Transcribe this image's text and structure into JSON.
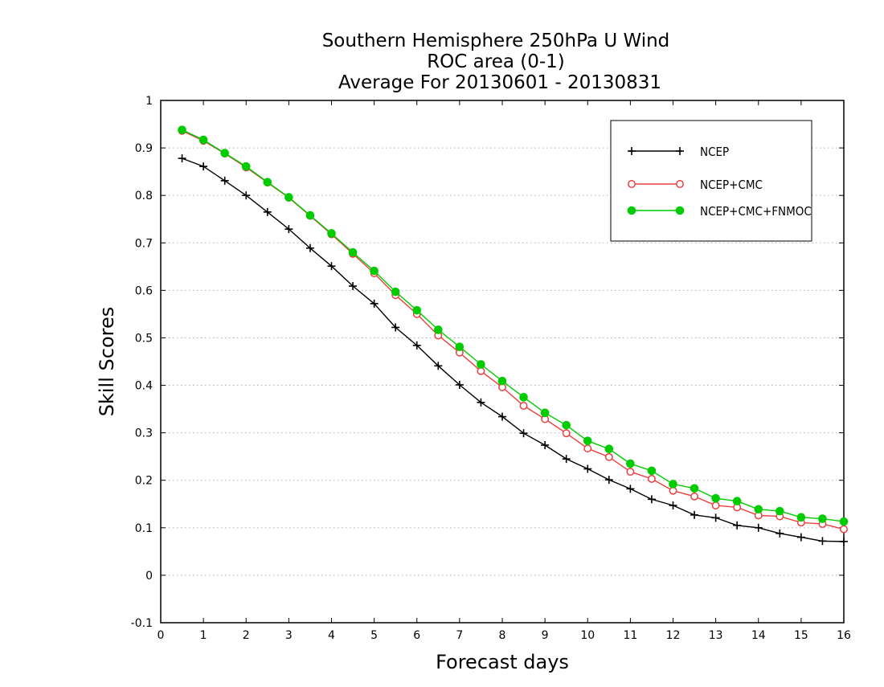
{
  "chart_data": {
    "type": "line",
    "title": [
      "Southern Hemisphere 250hPa U Wind",
      "ROC area (0-1)",
      "Average For 20130601 - 20130831"
    ],
    "xlabel": "Forecast days",
    "ylabel": "Skill Scores",
    "xlim": [
      0,
      16
    ],
    "ylim": [
      -0.1,
      1
    ],
    "x_ticks": [
      "0",
      "1",
      "2",
      "3",
      "4",
      "5",
      "6",
      "7",
      "8",
      "9",
      "10",
      "11",
      "12",
      "13",
      "14",
      "15",
      "16"
    ],
    "y_ticks": [
      "-0.1",
      "0",
      "0.1",
      "0.2",
      "0.3",
      "0.4",
      "0.5",
      "0.6",
      "0.7",
      "0.8",
      "0.9",
      "1"
    ],
    "grid": "horizontal dotted",
    "legend_position": "top-right",
    "x": [
      0.5,
      1,
      1.5,
      2,
      2.5,
      3,
      3.5,
      4,
      4.5,
      5,
      5.5,
      6,
      6.5,
      7,
      7.5,
      8,
      8.5,
      9,
      9.5,
      10,
      10.5,
      11,
      11.5,
      12,
      12.5,
      13,
      13.5,
      14,
      14.5,
      15,
      15.5,
      16
    ],
    "series": [
      {
        "name": "NCEP",
        "color": "#000000",
        "marker": "plus",
        "values": [
          0.878,
          0.861,
          0.831,
          0.8,
          0.765,
          0.729,
          0.689,
          0.651,
          0.609,
          0.572,
          0.522,
          0.484,
          0.441,
          0.401,
          0.364,
          0.334,
          0.299,
          0.274,
          0.245,
          0.224,
          0.201,
          0.182,
          0.16,
          0.147,
          0.127,
          0.121,
          0.105,
          0.1,
          0.088,
          0.08,
          0.072,
          0.071
        ]
      },
      {
        "name": "NCEP+CMC",
        "color": "#e84040",
        "marker": "open-circle",
        "values": [
          0.936,
          0.915,
          0.888,
          0.859,
          0.827,
          0.795,
          0.757,
          0.718,
          0.677,
          0.636,
          0.59,
          0.55,
          0.505,
          0.469,
          0.43,
          0.396,
          0.357,
          0.329,
          0.299,
          0.267,
          0.249,
          0.218,
          0.203,
          0.178,
          0.166,
          0.147,
          0.143,
          0.126,
          0.124,
          0.111,
          0.108,
          0.097
        ]
      },
      {
        "name": "NCEP+CMC+FNMOC",
        "color": "#00cc00",
        "marker": "filled-circle",
        "values": [
          0.938,
          0.917,
          0.889,
          0.861,
          0.828,
          0.796,
          0.758,
          0.72,
          0.68,
          0.641,
          0.597,
          0.558,
          0.517,
          0.481,
          0.444,
          0.409,
          0.375,
          0.342,
          0.316,
          0.283,
          0.266,
          0.235,
          0.22,
          0.192,
          0.183,
          0.162,
          0.156,
          0.139,
          0.135,
          0.122,
          0.119,
          0.113
        ]
      }
    ]
  }
}
